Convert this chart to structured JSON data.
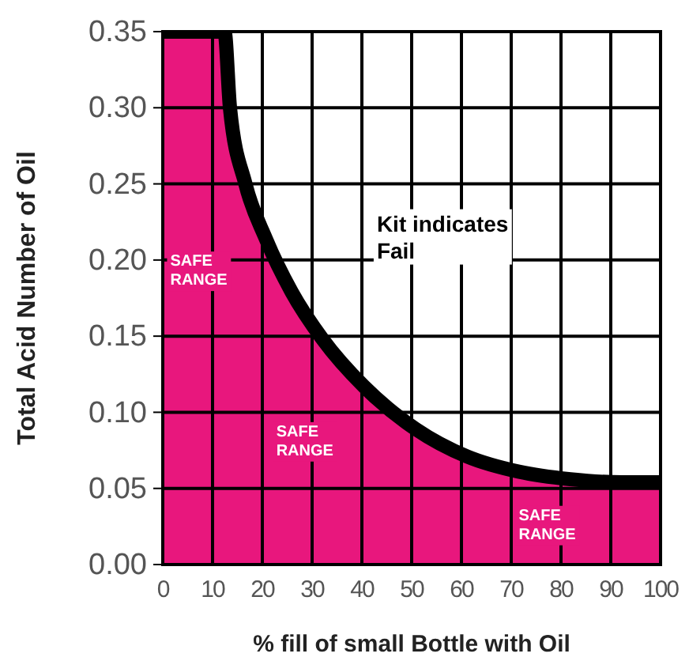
{
  "chart_data": {
    "type": "area",
    "xlabel": "% fill of small Bottle with Oil",
    "ylabel": "Total Acid Number of Oil",
    "series": [
      {
        "color": "#e8177d",
        "x": [
          0,
          12.4,
          13.5,
          16.6,
          20.7,
          25.9,
          32.1,
          40.4,
          50.8,
          61.1,
          71.5,
          81.9,
          92.2,
          100
        ],
        "values": [
          0.35,
          0.35,
          0.3,
          0.25,
          0.214,
          0.179,
          0.148,
          0.117,
          0.089,
          0.071,
          0.061,
          0.056,
          0.054,
          0.054
        ]
      }
    ],
    "xlim": [
      0,
      100
    ],
    "xticks": [
      0,
      10,
      20,
      30,
      40,
      50,
      60,
      70,
      80,
      90,
      100
    ],
    "ylim": [
      0,
      0.35
    ],
    "yticks": [
      {
        "value": 0,
        "label": "0.00"
      },
      0.05,
      {
        "value": 0.1,
        "label": "0.10"
      },
      0.15,
      {
        "value": 0.2,
        "label": "0.20"
      },
      0.25,
      {
        "value": 0.3,
        "label": "0.30"
      },
      0.35
    ],
    "grid": true,
    "annotations": [
      "SAFE RANGE",
      "SAFE RANGE",
      "SAFE RANGE",
      "Kit indicates Fail"
    ]
  }
}
